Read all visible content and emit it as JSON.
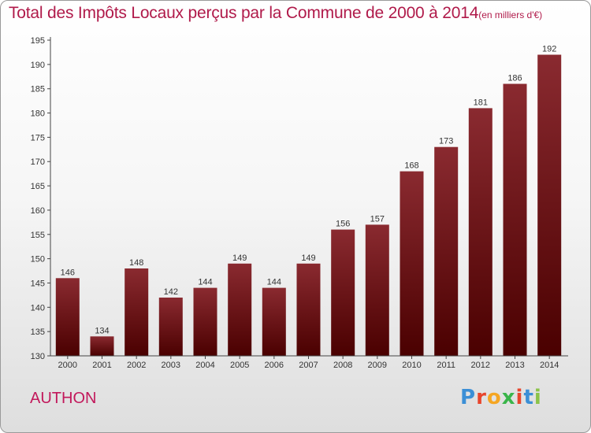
{
  "title": "Total des Impôts Locaux perçus par la Commune de 2000 à 2014",
  "title_unit": "(en milliers d'€)",
  "commune_name": "AUTHON",
  "logo": {
    "text": "Proxiti",
    "letter_colors": [
      "#3b8fd6",
      "#e8452c",
      "#f5a623",
      "#3ab54a",
      "#e8452c",
      "#3b8fd6",
      "#8bc34a"
    ]
  },
  "colors": {
    "bar_top": "#8a2a30",
    "bar_bottom": "#4a0000",
    "title": "#b01a4a",
    "commune": "#c2185b"
  },
  "chart_data": {
    "type": "bar",
    "categories": [
      "2000",
      "2001",
      "2002",
      "2003",
      "2004",
      "2005",
      "2006",
      "2007",
      "2008",
      "2009",
      "2010",
      "2011",
      "2012",
      "2013",
      "2014"
    ],
    "values": [
      146,
      134,
      148,
      142,
      144,
      149,
      144,
      149,
      156,
      157,
      168,
      173,
      181,
      186,
      192
    ],
    "title": "Total des Impôts Locaux perçus par la Commune de 2000 à 2014",
    "ylim": [
      130,
      195
    ],
    "yticks": [
      130,
      135,
      140,
      145,
      150,
      155,
      160,
      165,
      170,
      175,
      180,
      185,
      190,
      195
    ],
    "grid": false,
    "data_labels": true
  }
}
